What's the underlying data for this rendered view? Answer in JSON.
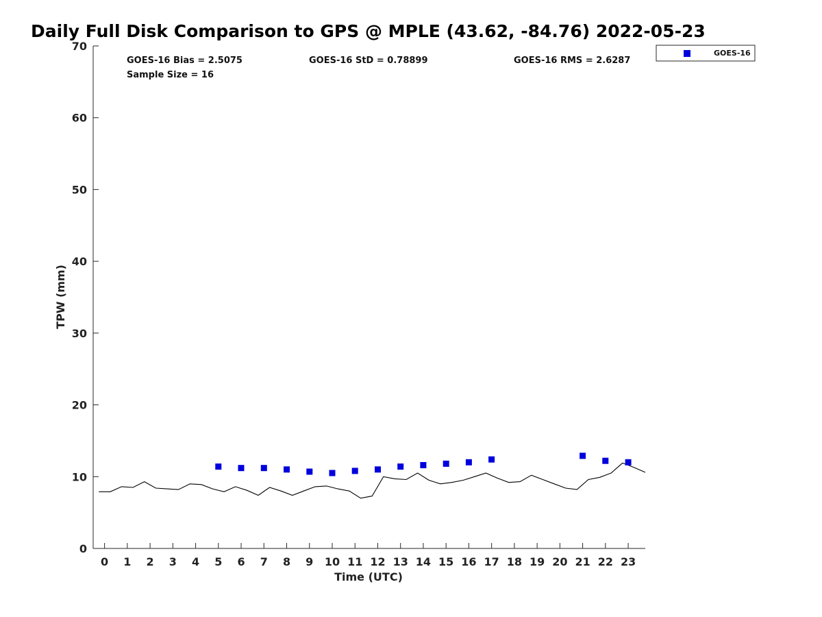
{
  "chart_data": {
    "type": "scatter",
    "title": "Daily Full Disk Comparison to GPS @ MPLE (43.62, -84.76) 2022-05-23",
    "xlabel": "Time (UTC)",
    "ylabel": "TPW (mm)",
    "xlim": [
      -0.5,
      23.75
    ],
    "ylim": [
      0,
      70
    ],
    "xticks": [
      0,
      1,
      2,
      3,
      4,
      5,
      6,
      7,
      8,
      9,
      10,
      11,
      12,
      13,
      14,
      15,
      16,
      17,
      18,
      19,
      20,
      21,
      22,
      23
    ],
    "yticks": [
      0,
      10,
      20,
      30,
      40,
      50,
      60,
      70
    ],
    "grid": false,
    "legend_position": "top-right, outside plot",
    "stats": {
      "bias": "GOES-16 Bias = 2.5075",
      "std": "GOES-16 StD = 0.78899",
      "rms": "GOES-16 RMS = 2.6287",
      "sample_size": "Sample Size = 16"
    },
    "series": [
      {
        "name": "GOES-16",
        "kind": "scatter",
        "marker": "square",
        "color": "#0000dd",
        "x": [
          5,
          6,
          7,
          8,
          9,
          10,
          11,
          12,
          13,
          14,
          15,
          16,
          17,
          21,
          22,
          23
        ],
        "y": [
          11.4,
          11.2,
          11.2,
          11.0,
          10.7,
          10.5,
          10.8,
          11.0,
          11.4,
          11.6,
          11.8,
          12.0,
          12.4,
          12.9,
          12.2,
          12.0
        ]
      },
      {
        "kind": "line",
        "color": "#000000",
        "x": [
          -0.25,
          0.25,
          0.75,
          1.25,
          1.75,
          2.25,
          2.75,
          3.25,
          3.75,
          4.25,
          4.75,
          5.25,
          5.75,
          6.25,
          6.75,
          7.25,
          7.75,
          8.25,
          8.75,
          9.25,
          9.75,
          10.25,
          10.75,
          11.25,
          11.75,
          12.25,
          12.75,
          13.25,
          13.75,
          14.25,
          14.75,
          15.25,
          15.75,
          16.25,
          16.75,
          17.25,
          17.75,
          18.25,
          18.75,
          19.25,
          19.75,
          20.25,
          20.75,
          21.25,
          21.75,
          22.25,
          22.75,
          23.25,
          23.75
        ],
        "y": [
          7.9,
          7.9,
          8.6,
          8.5,
          9.3,
          8.4,
          8.3,
          8.2,
          9.0,
          8.9,
          8.3,
          7.9,
          8.6,
          8.1,
          7.4,
          8.5,
          8.0,
          7.4,
          8.0,
          8.6,
          8.7,
          8.3,
          8.0,
          7.0,
          7.3,
          10.0,
          9.7,
          9.6,
          10.5,
          9.5,
          9.0,
          9.2,
          9.5,
          10.0,
          10.5,
          9.8,
          9.2,
          9.3,
          10.2,
          9.6,
          9.0,
          8.4,
          8.2,
          9.6,
          9.9,
          10.5,
          11.9,
          11.3,
          10.6
        ]
      }
    ]
  }
}
